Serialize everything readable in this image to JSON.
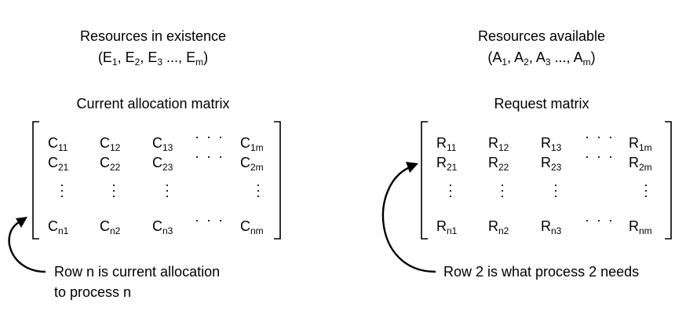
{
  "left": {
    "existence_title": "Resources in existence",
    "existence_vector": {
      "prefix": "(E",
      "subs": [
        "1",
        "2",
        "3",
        "m"
      ],
      "letter": "E"
    },
    "matrix_title": "Current allocation matrix",
    "letter": "C",
    "row_subs": [
      [
        "11",
        "12",
        "13",
        "1m"
      ],
      [
        "21",
        "22",
        "23",
        "2m"
      ],
      [
        "n1",
        "n2",
        "n3",
        "nm"
      ]
    ],
    "note_line1": "Row n is current allocation",
    "note_line2": "to process n"
  },
  "right": {
    "available_title": "Resources available",
    "available_vector": {
      "letter": "A",
      "subs": [
        "1",
        "2",
        "3",
        "m"
      ]
    },
    "matrix_title": "Request matrix",
    "letter": "R",
    "row_subs": [
      [
        "11",
        "12",
        "13",
        "1m"
      ],
      [
        "21",
        "22",
        "23",
        "2m"
      ],
      [
        "n1",
        "n2",
        "n3",
        "nm"
      ]
    ],
    "note_line1": "Row 2 is what process 2 needs"
  },
  "symbols": {
    "hdots": "· · ·",
    "vdot": "·",
    "ellipsis": "...,"
  }
}
